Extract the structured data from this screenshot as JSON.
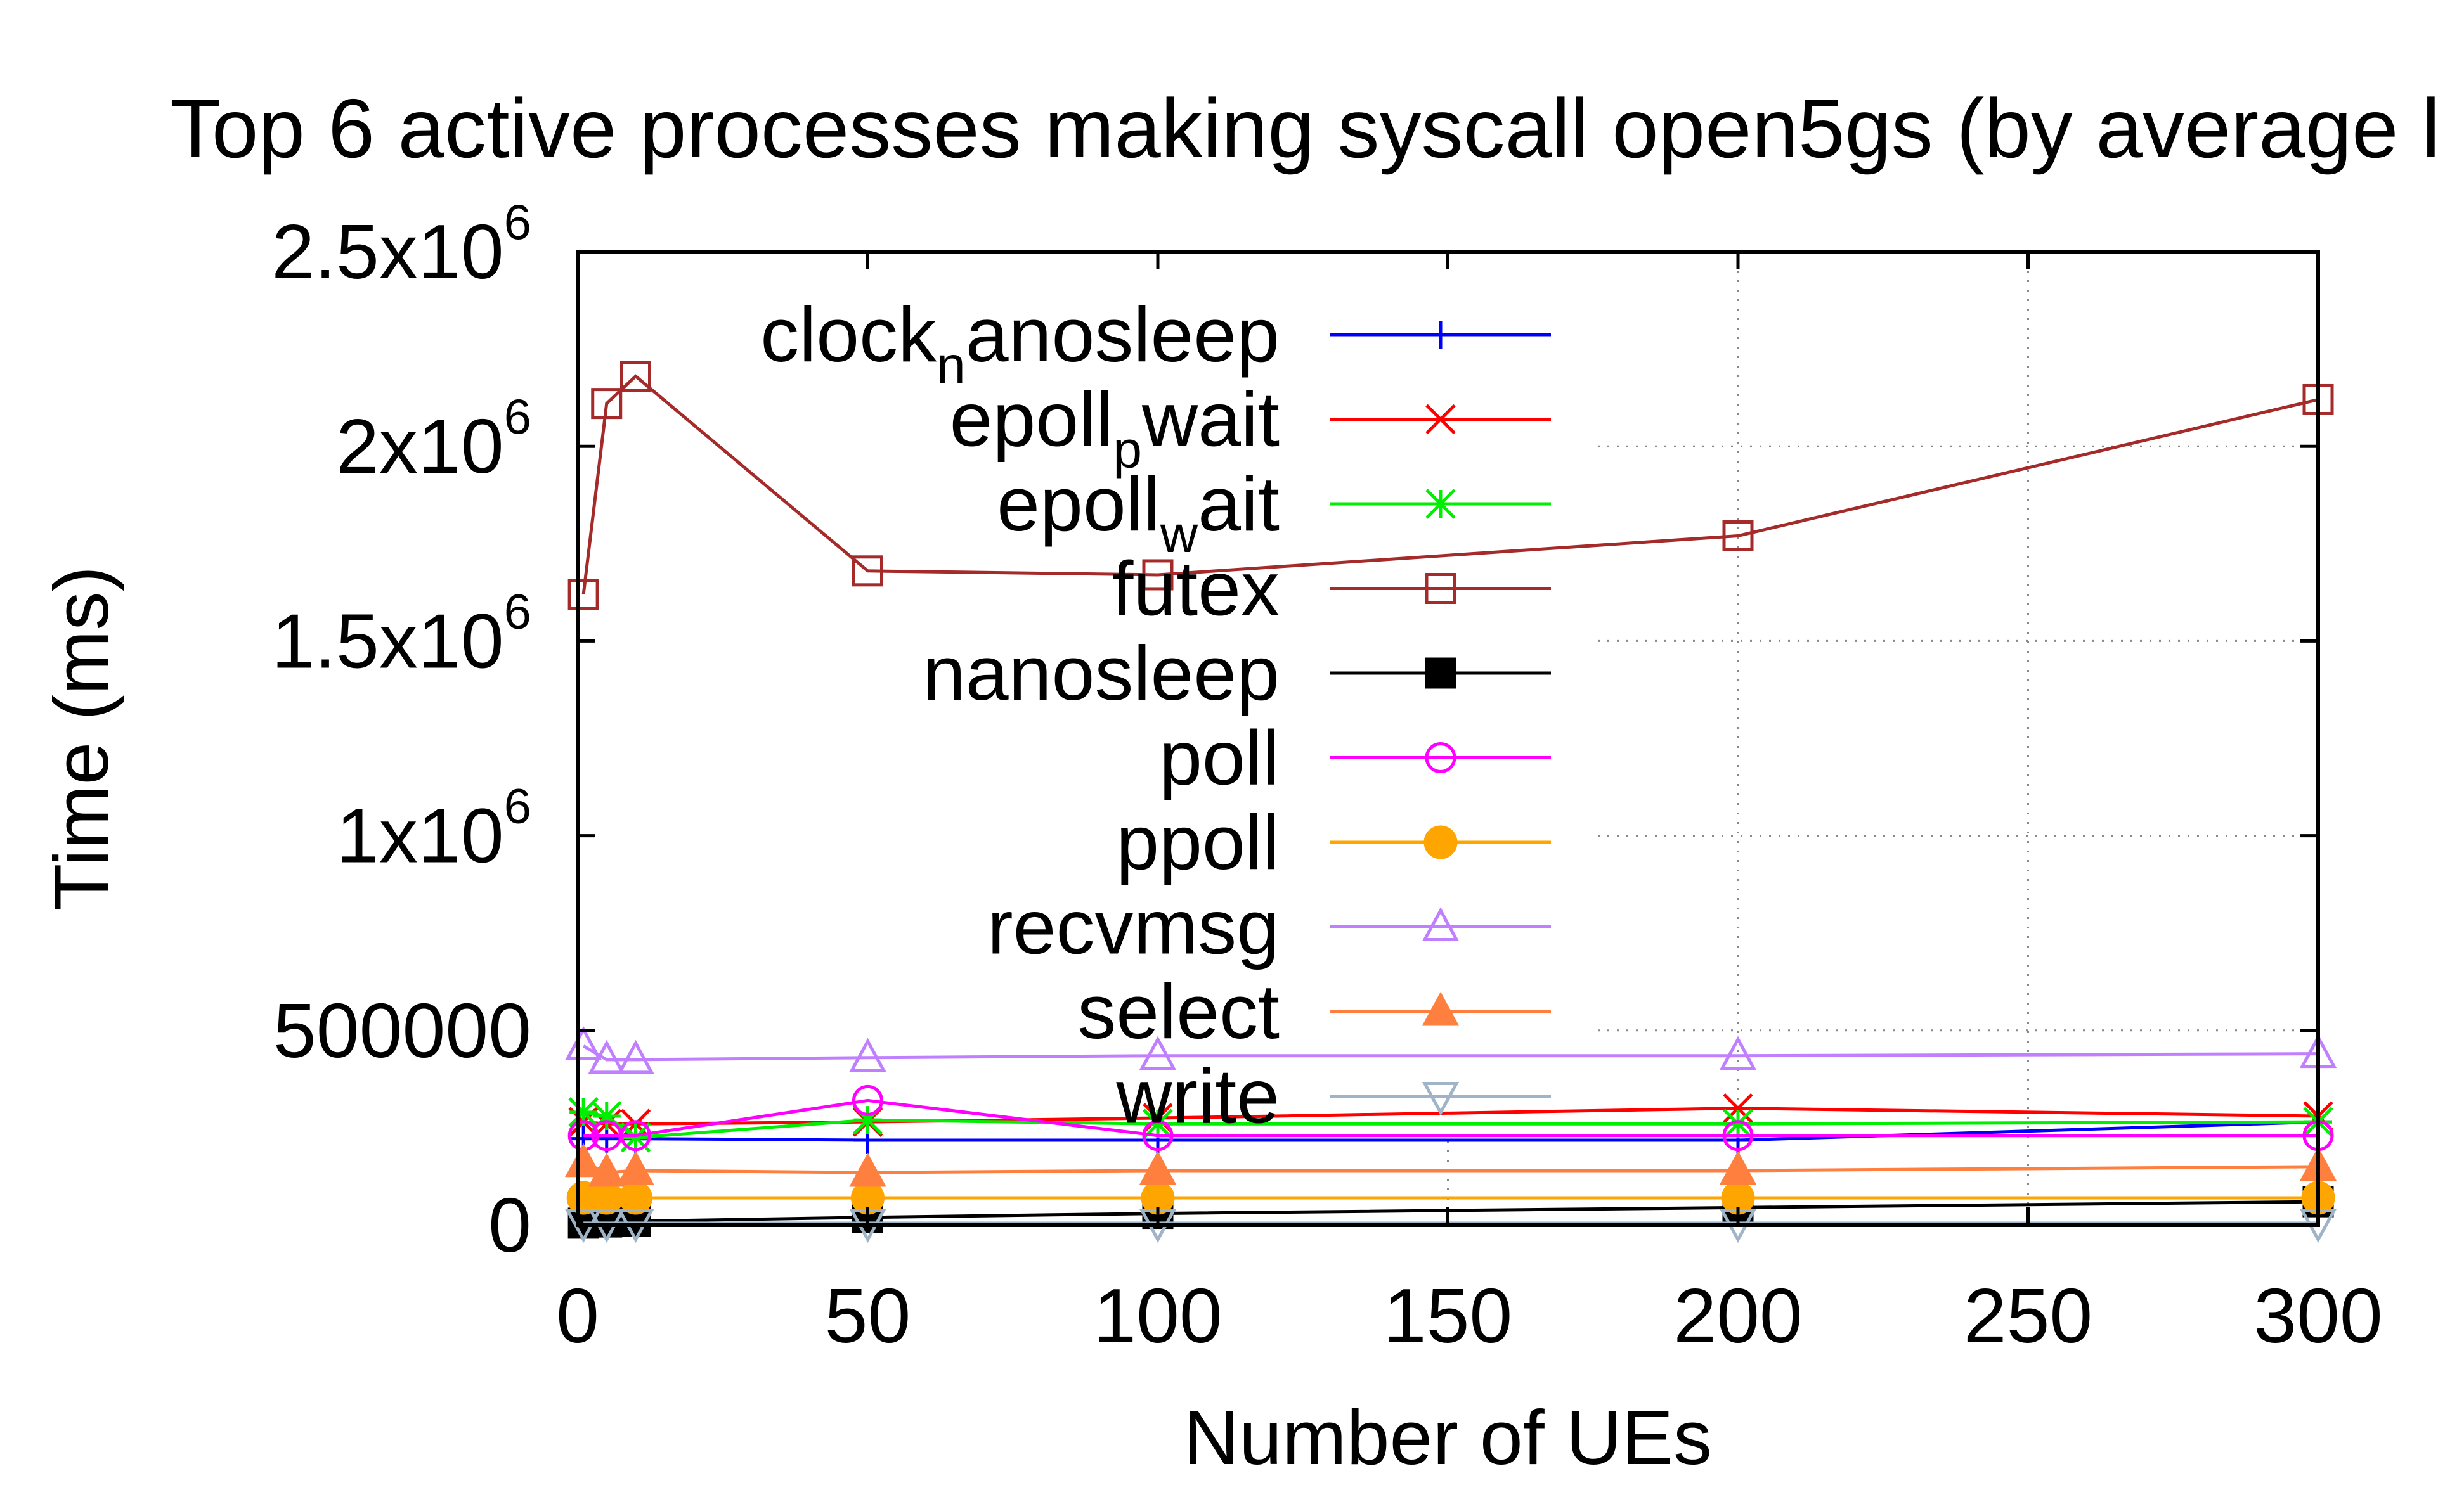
{
  "chart_data": {
    "type": "line",
    "title": "Top 6 active processes making syscall open5gs (by average l",
    "xlabel": "Number of UEs",
    "ylabel": "Time (ms)",
    "xlim": [
      0,
      300
    ],
    "ylim": [
      0,
      2500000
    ],
    "grid": true,
    "legend_position": "top-right",
    "x_ticks": [
      {
        "value": 0,
        "label": "0"
      },
      {
        "value": 50,
        "label": "50"
      },
      {
        "value": 100,
        "label": "100"
      },
      {
        "value": 150,
        "label": "150"
      },
      {
        "value": 200,
        "label": "200"
      },
      {
        "value": 250,
        "label": "250"
      },
      {
        "value": 300,
        "label": "300"
      }
    ],
    "y_ticks": [
      {
        "value": 0,
        "base": "0",
        "exp": ""
      },
      {
        "value": 500000,
        "base": "500000",
        "exp": ""
      },
      {
        "value": 1000000,
        "base": "1x10",
        "exp": "6"
      },
      {
        "value": 1500000,
        "base": "1.5x10",
        "exp": "6"
      },
      {
        "value": 2000000,
        "base": "2x10",
        "exp": "6"
      },
      {
        "value": 2500000,
        "base": "2.5x10",
        "exp": "6"
      }
    ],
    "x": [
      1,
      5,
      10,
      50,
      100,
      200,
      300
    ],
    "series": [
      {
        "name": "clock_nanosleep",
        "label_main": "clock",
        "label_sub": "n",
        "label_rest": "anosleep",
        "color": "#0000ff",
        "marker": "plus",
        "values": [
          222000,
          222000,
          222000,
          218000,
          218000,
          218000,
          265000
        ]
      },
      {
        "name": "epoll_pwait",
        "label_main": "epoll",
        "label_sub": "p",
        "label_rest": "wait",
        "color": "#ff0000",
        "marker": "cross",
        "values": [
          265000,
          260000,
          260000,
          265000,
          275000,
          300000,
          280000
        ]
      },
      {
        "name": "epoll_wait",
        "label_main": "epoll",
        "label_sub": "w",
        "label_rest": "ait",
        "color": "#00ee00",
        "marker": "asterisk",
        "values": [
          290000,
          280000,
          225000,
          270000,
          260000,
          260000,
          265000
        ]
      },
      {
        "name": "futex",
        "label_main": "futex",
        "label_sub": "",
        "label_rest": "",
        "color": "#a52a2a",
        "marker": "square-open",
        "values": [
          1620000,
          2110000,
          2180000,
          1680000,
          1670000,
          1770000,
          2120000
        ]
      },
      {
        "name": "nanosleep",
        "label_main": "nanosleep",
        "label_sub": "",
        "label_rest": "",
        "color": "#000000",
        "marker": "square-filled",
        "values": [
          5000,
          8000,
          10000,
          20000,
          30000,
          45000,
          60000
        ]
      },
      {
        "name": "poll",
        "label_main": "poll",
        "label_sub": "",
        "label_rest": "",
        "color": "#ff00ff",
        "marker": "circle-open",
        "values": [
          230000,
          230000,
          230000,
          320000,
          230000,
          230000,
          230000
        ]
      },
      {
        "name": "ppoll",
        "label_main": "ppoll",
        "label_sub": "",
        "label_rest": "",
        "color": "#ffa500",
        "marker": "circle-filled",
        "values": [
          70000,
          70000,
          70000,
          70000,
          70000,
          70000,
          70000
        ]
      },
      {
        "name": "recvmsg",
        "label_main": "recvmsg",
        "label_sub": "",
        "label_rest": "",
        "color": "#bf7fff",
        "marker": "triangle-up-open",
        "values": [
          460000,
          425000,
          425000,
          430000,
          435000,
          435000,
          440000
        ]
      },
      {
        "name": "select",
        "label_main": "select",
        "label_sub": "",
        "label_rest": "",
        "color": "#ff7f3f",
        "marker": "triangle-up-filled",
        "values": [
          160000,
          135000,
          140000,
          135000,
          140000,
          140000,
          150000
        ]
      },
      {
        "name": "write",
        "label_main": "write",
        "label_sub": "",
        "label_rest": "",
        "color": "#a0b4c8",
        "marker": "triangle-down-open",
        "values": [
          5000,
          5000,
          5000,
          5000,
          5000,
          5000,
          5000
        ]
      }
    ]
  }
}
